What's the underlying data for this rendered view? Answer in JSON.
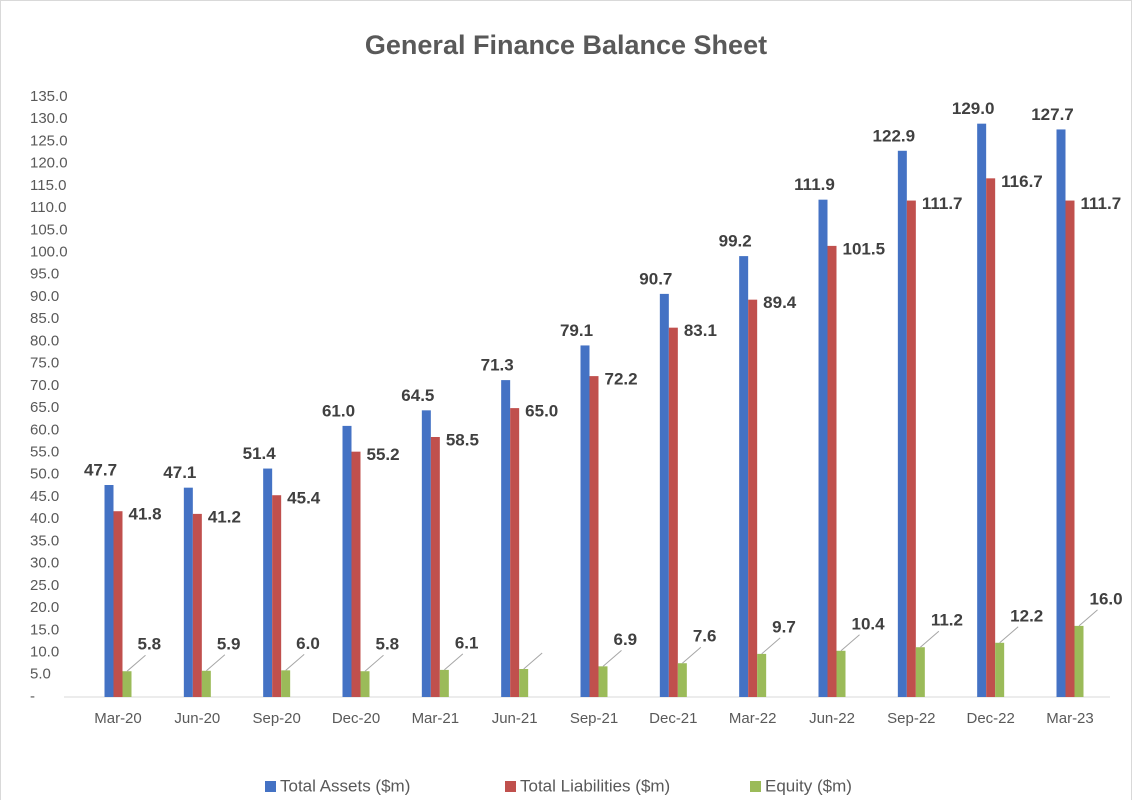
{
  "chart_data": {
    "type": "bar",
    "title": "General Finance Balance Sheet",
    "categories": [
      "Mar-20",
      "Jun-20",
      "Sep-20",
      "Dec-20",
      "Mar-21",
      "Jun-21",
      "Sep-21",
      "Dec-21",
      "Mar-22",
      "Jun-22",
      "Sep-22",
      "Dec-22",
      "Mar-23"
    ],
    "series": [
      {
        "name": "Total Assets ($m)",
        "color": "#4472c4",
        "values": [
          47.7,
          47.1,
          51.4,
          61.0,
          64.5,
          71.3,
          79.1,
          90.7,
          99.2,
          111.9,
          122.9,
          129.0,
          127.7
        ],
        "value_labels": [
          "47.7",
          "47.1",
          "51.4",
          "61.0",
          "64.5",
          "71.3",
          "79.1",
          "90.7",
          "99.2",
          "111.9",
          "122.9",
          "129.0",
          "127.7"
        ]
      },
      {
        "name": "Total Liabilities ($m)",
        "color": "#c0504d",
        "values": [
          41.8,
          41.2,
          45.4,
          55.2,
          58.5,
          65.0,
          72.2,
          83.1,
          89.4,
          101.5,
          111.7,
          116.7,
          111.7
        ],
        "value_labels": [
          "41.8",
          "41.2",
          "45.4",
          "55.2",
          "58.5",
          "65.0",
          "72.2",
          "83.1",
          "89.4",
          "101.5",
          "111.7",
          "116.7",
          "111.7"
        ]
      },
      {
        "name": "Equity ($m)",
        "color": "#9bbb59",
        "values": [
          5.8,
          5.9,
          6.0,
          5.8,
          6.1,
          6.3,
          6.9,
          7.6,
          9.7,
          10.4,
          11.2,
          12.2,
          16.0
        ],
        "value_labels": [
          "5.8",
          "5.9",
          "6.0",
          "5.8",
          "6.1",
          null,
          "6.9",
          "7.6",
          "9.7",
          "10.4",
          "11.2",
          "12.2",
          "16.0"
        ]
      }
    ],
    "ylim": [
      0,
      135
    ],
    "yticks": [
      {
        "value": 0,
        "label": "-"
      },
      {
        "value": 5,
        "label": "5.0"
      },
      {
        "value": 10,
        "label": "10.0"
      },
      {
        "value": 15,
        "label": "15.0"
      },
      {
        "value": 20,
        "label": "20.0"
      },
      {
        "value": 25,
        "label": "25.0"
      },
      {
        "value": 30,
        "label": "30.0"
      },
      {
        "value": 35,
        "label": "35.0"
      },
      {
        "value": 40,
        "label": "40.0"
      },
      {
        "value": 45,
        "label": "45.0"
      },
      {
        "value": 50,
        "label": "50.0"
      },
      {
        "value": 55,
        "label": "55.0"
      },
      {
        "value": 60,
        "label": "60.0"
      },
      {
        "value": 65,
        "label": "65.0"
      },
      {
        "value": 70,
        "label": "70.0"
      },
      {
        "value": 75,
        "label": "75.0"
      },
      {
        "value": 80,
        "label": "80.0"
      },
      {
        "value": 85,
        "label": "85.0"
      },
      {
        "value": 90,
        "label": "90.0"
      },
      {
        "value": 95,
        "label": "95.0"
      },
      {
        "value": 100,
        "label": "100.0"
      },
      {
        "value": 105,
        "label": "105.0"
      },
      {
        "value": 110,
        "label": "110.0"
      },
      {
        "value": 115,
        "label": "115.0"
      },
      {
        "value": 120,
        "label": "120.0"
      },
      {
        "value": 125,
        "label": "125.0"
      },
      {
        "value": 130,
        "label": "130.0"
      },
      {
        "value": 135,
        "label": "135.0"
      }
    ],
    "grid": false,
    "legend": "bottom"
  }
}
